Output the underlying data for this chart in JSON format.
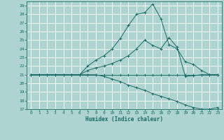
{
  "xlabel": "Humidex (Indice chaleur)",
  "background_color": "#aed4d2",
  "grid_color": "#ffffff",
  "line_color": "#1a6b62",
  "xlim": [
    -0.5,
    23.5
  ],
  "ylim": [
    17,
    29.5
  ],
  "xticks": [
    0,
    1,
    2,
    3,
    4,
    5,
    6,
    7,
    8,
    9,
    10,
    11,
    12,
    13,
    14,
    15,
    16,
    17,
    18,
    19,
    20,
    21,
    22,
    23
  ],
  "yticks": [
    17,
    18,
    19,
    20,
    21,
    22,
    23,
    24,
    25,
    26,
    27,
    28,
    29
  ],
  "lines": [
    {
      "x": [
        0,
        1,
        2,
        3,
        4,
        5,
        6,
        7,
        8,
        9,
        10,
        11,
        12,
        13,
        14,
        15,
        16,
        17,
        18,
        19,
        20,
        21,
        22,
        23
      ],
      "y": [
        21,
        21,
        21,
        21,
        21,
        21,
        21,
        22.0,
        22.7,
        23.2,
        24.0,
        25.2,
        26.7,
        28.0,
        28.2,
        29.2,
        27.5,
        24.5,
        24.0,
        22.5,
        22.2,
        21.5,
        21.0,
        21.0
      ]
    },
    {
      "x": [
        0,
        1,
        2,
        3,
        4,
        5,
        6,
        7,
        8,
        9,
        10,
        11,
        12,
        13,
        14,
        15,
        16,
        17,
        18,
        19,
        20,
        21,
        22,
        23
      ],
      "y": [
        21,
        21,
        21,
        21,
        21,
        21,
        21,
        21.5,
        21.8,
        22.0,
        22.3,
        22.7,
        23.2,
        24.0,
        25.0,
        24.4,
        24.0,
        25.3,
        24.2,
        20.8,
        20.9,
        21.0,
        21.0,
        21.0
      ]
    },
    {
      "x": [
        0,
        1,
        2,
        3,
        4,
        5,
        6,
        7,
        8,
        9,
        10,
        11,
        12,
        13,
        14,
        15,
        16,
        17,
        18,
        19,
        20,
        21,
        22,
        23
      ],
      "y": [
        21,
        21,
        21,
        21,
        21,
        21,
        21,
        21,
        21,
        21,
        21,
        21,
        21,
        21,
        21,
        21,
        21,
        21,
        21,
        21,
        21,
        21,
        21,
        21
      ]
    },
    {
      "x": [
        0,
        1,
        2,
        3,
        4,
        5,
        6,
        7,
        8,
        9,
        10,
        11,
        12,
        13,
        14,
        15,
        16,
        17,
        18,
        19,
        20,
        21,
        22,
        23
      ],
      "y": [
        21,
        21,
        21,
        21,
        21,
        21,
        21,
        21,
        21,
        20.8,
        20.5,
        20.2,
        19.8,
        19.5,
        19.2,
        18.8,
        18.5,
        18.2,
        17.9,
        17.5,
        17.2,
        17.0,
        17.0,
        17.2
      ]
    }
  ]
}
